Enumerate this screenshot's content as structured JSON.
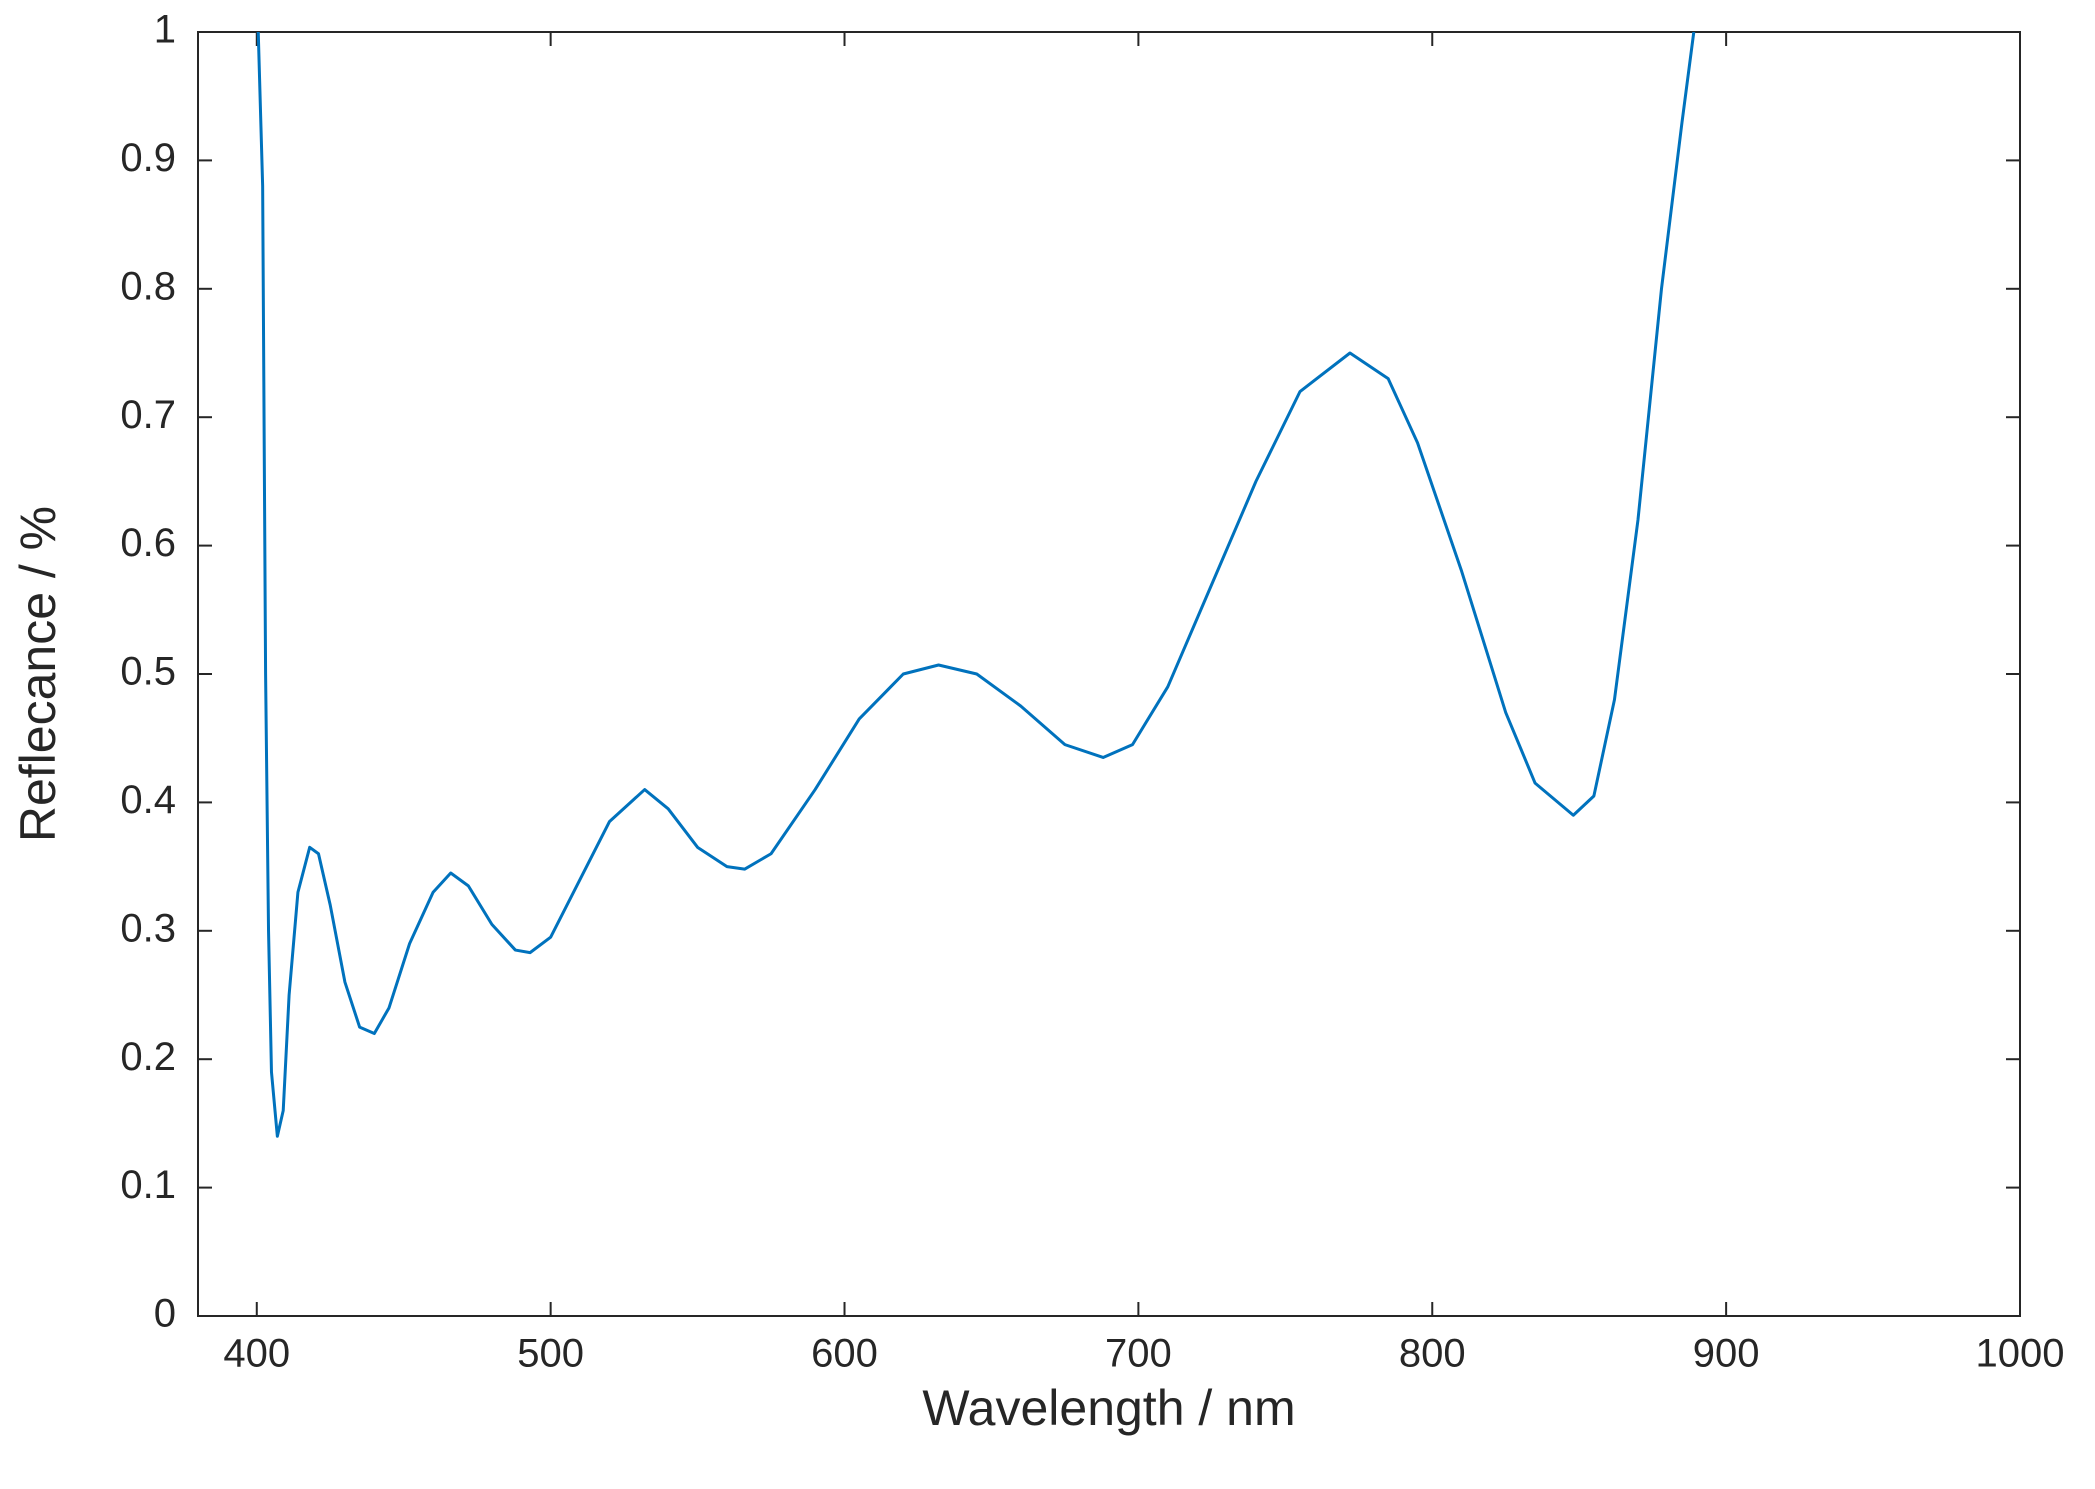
{
  "chart_data": {
    "type": "line",
    "xlabel": "Wavelength / nm",
    "ylabel": "Reflecance / %",
    "xlim": [
      380,
      1000
    ],
    "ylim": [
      0,
      1
    ],
    "xticks": [
      400,
      500,
      600,
      700,
      800,
      900,
      1000
    ],
    "yticks": [
      0,
      0.1,
      0.2,
      0.3,
      0.4,
      0.5,
      0.6,
      0.7,
      0.8,
      0.9,
      1
    ],
    "grid": false,
    "series": [
      {
        "color": "#0072bd",
        "x": [
          400.5,
          402,
          403,
          404,
          405,
          407,
          409,
          411,
          414,
          418,
          421,
          425,
          430,
          435,
          440,
          445,
          452,
          460,
          466,
          472,
          480,
          488,
          493,
          500,
          510,
          520,
          532,
          540,
          550,
          560,
          566,
          575,
          590,
          605,
          620,
          632,
          645,
          660,
          675,
          688,
          698,
          710,
          725,
          740,
          755,
          772,
          785,
          795,
          810,
          825,
          835,
          848,
          855,
          862,
          870,
          878,
          885,
          889
        ],
        "values": [
          1.0,
          0.88,
          0.5,
          0.3,
          0.19,
          0.14,
          0.16,
          0.25,
          0.33,
          0.365,
          0.36,
          0.32,
          0.26,
          0.225,
          0.22,
          0.24,
          0.29,
          0.33,
          0.345,
          0.335,
          0.305,
          0.285,
          0.283,
          0.295,
          0.34,
          0.385,
          0.41,
          0.395,
          0.365,
          0.35,
          0.348,
          0.36,
          0.41,
          0.465,
          0.5,
          0.507,
          0.5,
          0.475,
          0.445,
          0.435,
          0.445,
          0.49,
          0.57,
          0.65,
          0.72,
          0.75,
          0.73,
          0.68,
          0.58,
          0.47,
          0.415,
          0.39,
          0.405,
          0.48,
          0.62,
          0.8,
          0.93,
          1.0
        ]
      }
    ]
  }
}
